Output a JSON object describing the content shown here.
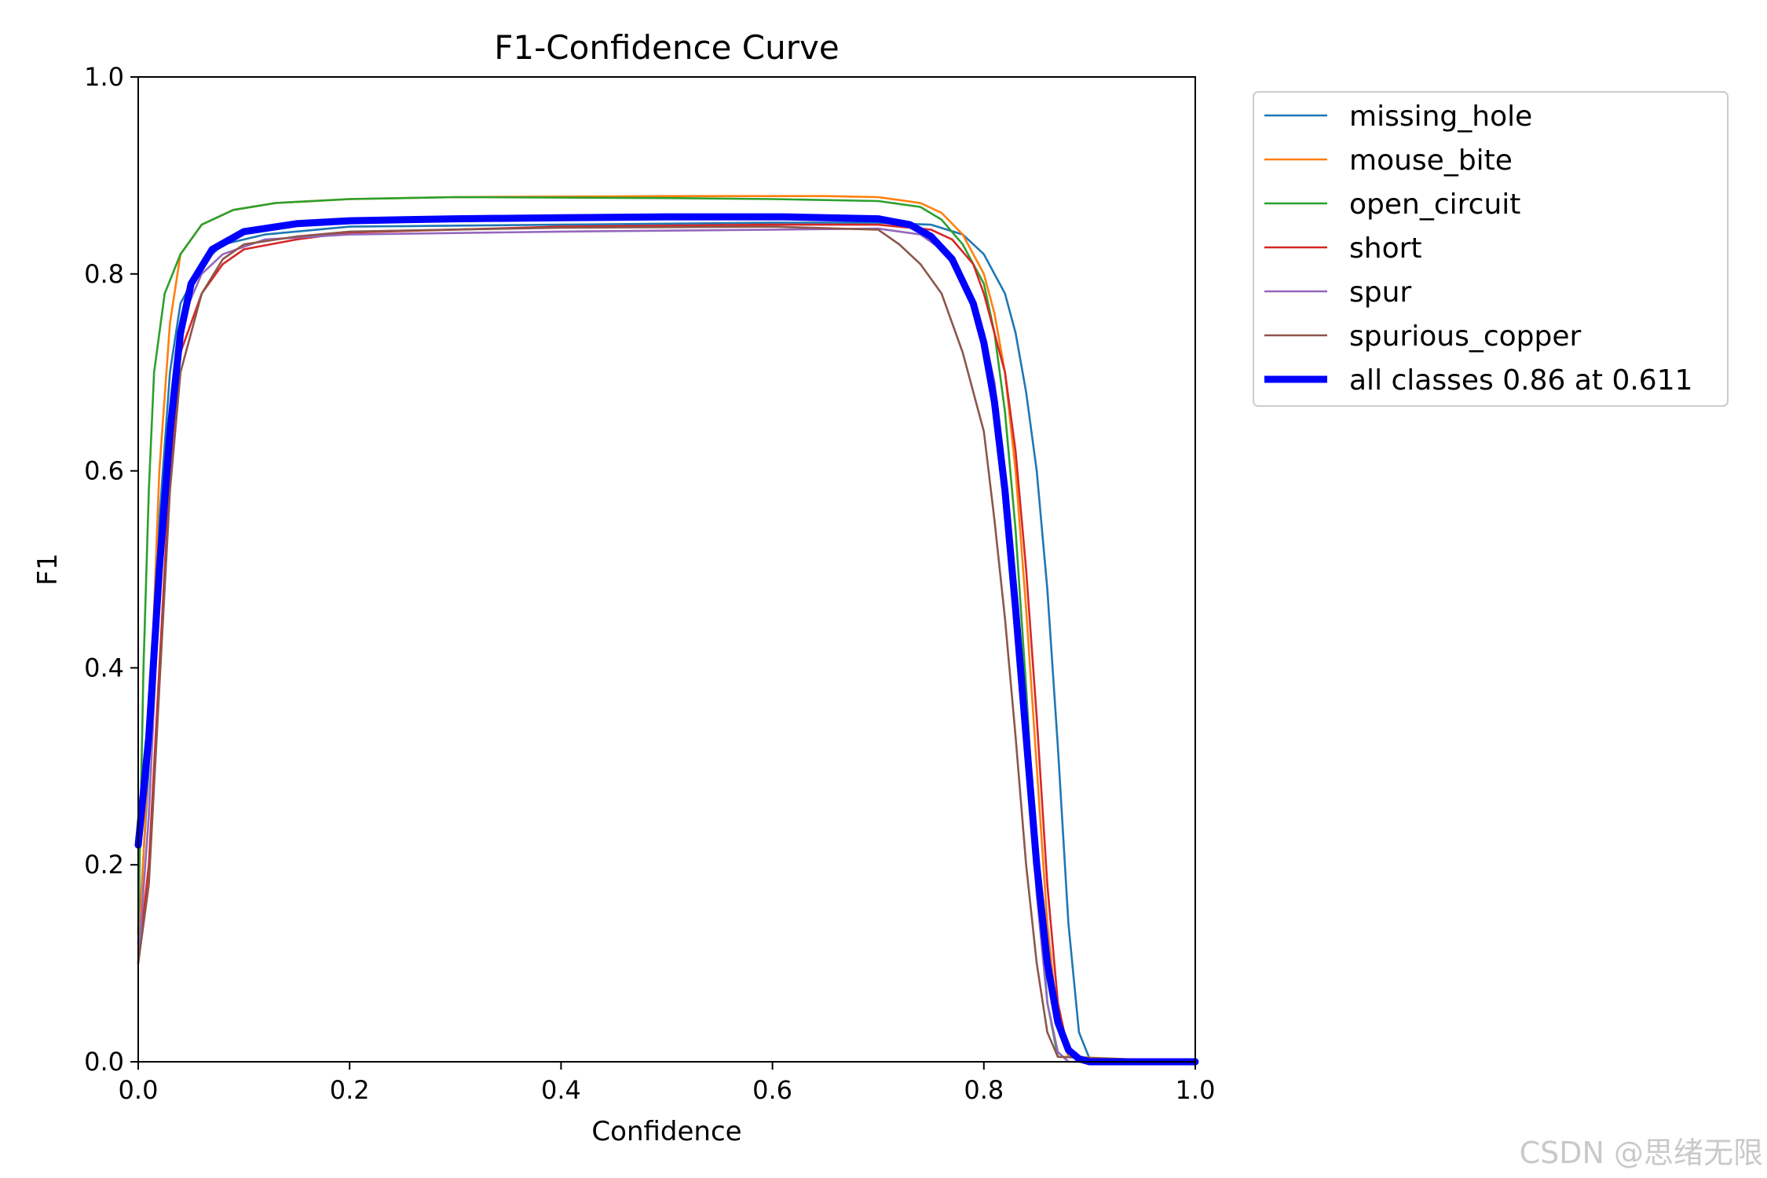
{
  "chart_data": {
    "type": "line",
    "title": "F1-Confidence Curve",
    "xlabel": "Confidence",
    "ylabel": "F1",
    "xlim": [
      0.0,
      1.0
    ],
    "ylim": [
      0.0,
      1.0
    ],
    "xticks": [
      "0.0",
      "0.2",
      "0.4",
      "0.6",
      "0.8",
      "1.0"
    ],
    "yticks": [
      "0.0",
      "0.2",
      "0.4",
      "0.6",
      "0.8",
      "1.0"
    ],
    "grid": false,
    "legend_position": "outside-right-top",
    "series": [
      {
        "name": "missing_hole",
        "color": "#1f77b4",
        "width": "thin",
        "points": [
          [
            0.0,
            0.12
          ],
          [
            0.01,
            0.3
          ],
          [
            0.02,
            0.55
          ],
          [
            0.03,
            0.7
          ],
          [
            0.04,
            0.77
          ],
          [
            0.06,
            0.81
          ],
          [
            0.08,
            0.83
          ],
          [
            0.12,
            0.84
          ],
          [
            0.2,
            0.848
          ],
          [
            0.4,
            0.85
          ],
          [
            0.6,
            0.852
          ],
          [
            0.7,
            0.852
          ],
          [
            0.75,
            0.85
          ],
          [
            0.78,
            0.84
          ],
          [
            0.8,
            0.82
          ],
          [
            0.82,
            0.78
          ],
          [
            0.83,
            0.74
          ],
          [
            0.84,
            0.68
          ],
          [
            0.85,
            0.6
          ],
          [
            0.86,
            0.48
          ],
          [
            0.87,
            0.32
          ],
          [
            0.88,
            0.14
          ],
          [
            0.89,
            0.03
          ],
          [
            0.9,
            0.003
          ],
          [
            1.0,
            0.0
          ]
        ]
      },
      {
        "name": "mouse_bite",
        "color": "#ff7f0e",
        "width": "thin",
        "points": [
          [
            0.0,
            0.1
          ],
          [
            0.01,
            0.32
          ],
          [
            0.02,
            0.6
          ],
          [
            0.03,
            0.75
          ],
          [
            0.04,
            0.82
          ],
          [
            0.06,
            0.85
          ],
          [
            0.09,
            0.865
          ],
          [
            0.13,
            0.872
          ],
          [
            0.2,
            0.876
          ],
          [
            0.3,
            0.878
          ],
          [
            0.5,
            0.879
          ],
          [
            0.65,
            0.879
          ],
          [
            0.7,
            0.878
          ],
          [
            0.74,
            0.872
          ],
          [
            0.76,
            0.862
          ],
          [
            0.78,
            0.84
          ],
          [
            0.8,
            0.8
          ],
          [
            0.81,
            0.76
          ],
          [
            0.82,
            0.7
          ],
          [
            0.83,
            0.6
          ],
          [
            0.84,
            0.46
          ],
          [
            0.85,
            0.3
          ],
          [
            0.86,
            0.14
          ],
          [
            0.87,
            0.04
          ],
          [
            0.88,
            0.005
          ],
          [
            1.0,
            0.0
          ]
        ]
      },
      {
        "name": "open_circuit",
        "color": "#2ca02c",
        "width": "thin",
        "points": [
          [
            0.0,
            0.13
          ],
          [
            0.005,
            0.4
          ],
          [
            0.01,
            0.58
          ],
          [
            0.015,
            0.7
          ],
          [
            0.025,
            0.78
          ],
          [
            0.04,
            0.82
          ],
          [
            0.06,
            0.85
          ],
          [
            0.09,
            0.865
          ],
          [
            0.13,
            0.872
          ],
          [
            0.2,
            0.876
          ],
          [
            0.3,
            0.878
          ],
          [
            0.5,
            0.877
          ],
          [
            0.6,
            0.876
          ],
          [
            0.7,
            0.874
          ],
          [
            0.74,
            0.868
          ],
          [
            0.76,
            0.855
          ],
          [
            0.78,
            0.83
          ],
          [
            0.8,
            0.79
          ],
          [
            0.81,
            0.74
          ],
          [
            0.82,
            0.66
          ],
          [
            0.83,
            0.54
          ],
          [
            0.84,
            0.38
          ],
          [
            0.85,
            0.2
          ],
          [
            0.86,
            0.06
          ],
          [
            0.87,
            0.005
          ],
          [
            1.0,
            0.0
          ]
        ]
      },
      {
        "name": "short",
        "color": "#d62728",
        "width": "thin",
        "points": [
          [
            0.0,
            0.1
          ],
          [
            0.01,
            0.2
          ],
          [
            0.02,
            0.4
          ],
          [
            0.03,
            0.6
          ],
          [
            0.04,
            0.72
          ],
          [
            0.06,
            0.78
          ],
          [
            0.08,
            0.81
          ],
          [
            0.1,
            0.825
          ],
          [
            0.15,
            0.835
          ],
          [
            0.2,
            0.842
          ],
          [
            0.4,
            0.848
          ],
          [
            0.6,
            0.85
          ],
          [
            0.7,
            0.85
          ],
          [
            0.75,
            0.845
          ],
          [
            0.77,
            0.835
          ],
          [
            0.79,
            0.81
          ],
          [
            0.8,
            0.78
          ],
          [
            0.82,
            0.7
          ],
          [
            0.83,
            0.62
          ],
          [
            0.84,
            0.5
          ],
          [
            0.85,
            0.35
          ],
          [
            0.86,
            0.18
          ],
          [
            0.87,
            0.06
          ],
          [
            0.88,
            0.01
          ],
          [
            0.89,
            0.0
          ],
          [
            1.0,
            0.0
          ]
        ]
      },
      {
        "name": "spur",
        "color": "#9467bd",
        "width": "thin",
        "points": [
          [
            0.0,
            0.1
          ],
          [
            0.01,
            0.25
          ],
          [
            0.02,
            0.48
          ],
          [
            0.03,
            0.65
          ],
          [
            0.04,
            0.75
          ],
          [
            0.06,
            0.8
          ],
          [
            0.08,
            0.82
          ],
          [
            0.12,
            0.835
          ],
          [
            0.2,
            0.84
          ],
          [
            0.4,
            0.843
          ],
          [
            0.6,
            0.845
          ],
          [
            0.7,
            0.846
          ],
          [
            0.74,
            0.84
          ],
          [
            0.76,
            0.825
          ],
          [
            0.78,
            0.795
          ],
          [
            0.8,
            0.74
          ],
          [
            0.81,
            0.69
          ],
          [
            0.82,
            0.6
          ],
          [
            0.83,
            0.48
          ],
          [
            0.84,
            0.33
          ],
          [
            0.85,
            0.17
          ],
          [
            0.86,
            0.06
          ],
          [
            0.87,
            0.01
          ],
          [
            0.88,
            0.0
          ],
          [
            1.0,
            0.0
          ]
        ]
      },
      {
        "name": "spurious_copper",
        "color": "#8c564b",
        "width": "thin",
        "points": [
          [
            0.0,
            0.1
          ],
          [
            0.01,
            0.18
          ],
          [
            0.02,
            0.38
          ],
          [
            0.03,
            0.58
          ],
          [
            0.04,
            0.7
          ],
          [
            0.06,
            0.78
          ],
          [
            0.08,
            0.815
          ],
          [
            0.1,
            0.83
          ],
          [
            0.15,
            0.838
          ],
          [
            0.2,
            0.843
          ],
          [
            0.4,
            0.847
          ],
          [
            0.6,
            0.848
          ],
          [
            0.7,
            0.845
          ],
          [
            0.72,
            0.83
          ],
          [
            0.74,
            0.81
          ],
          [
            0.76,
            0.78
          ],
          [
            0.78,
            0.72
          ],
          [
            0.8,
            0.64
          ],
          [
            0.81,
            0.55
          ],
          [
            0.82,
            0.45
          ],
          [
            0.83,
            0.33
          ],
          [
            0.84,
            0.2
          ],
          [
            0.85,
            0.1
          ],
          [
            0.86,
            0.03
          ],
          [
            0.87,
            0.005
          ],
          [
            1.0,
            0.0
          ]
        ]
      },
      {
        "name": "all classes 0.86 at 0.611",
        "color": "#0000ff",
        "width": "thick",
        "points": [
          [
            0.0,
            0.22
          ],
          [
            0.01,
            0.33
          ],
          [
            0.02,
            0.5
          ],
          [
            0.03,
            0.64
          ],
          [
            0.04,
            0.74
          ],
          [
            0.05,
            0.79
          ],
          [
            0.07,
            0.825
          ],
          [
            0.1,
            0.843
          ],
          [
            0.15,
            0.851
          ],
          [
            0.2,
            0.854
          ],
          [
            0.3,
            0.856
          ],
          [
            0.4,
            0.857
          ],
          [
            0.5,
            0.858
          ],
          [
            0.611,
            0.858
          ],
          [
            0.7,
            0.856
          ],
          [
            0.73,
            0.85
          ],
          [
            0.75,
            0.838
          ],
          [
            0.77,
            0.815
          ],
          [
            0.79,
            0.77
          ],
          [
            0.8,
            0.73
          ],
          [
            0.81,
            0.67
          ],
          [
            0.82,
            0.58
          ],
          [
            0.83,
            0.46
          ],
          [
            0.84,
            0.33
          ],
          [
            0.85,
            0.2
          ],
          [
            0.86,
            0.1
          ],
          [
            0.87,
            0.04
          ],
          [
            0.88,
            0.012
          ],
          [
            0.89,
            0.003
          ],
          [
            0.9,
            0.0
          ],
          [
            1.0,
            0.0
          ]
        ]
      }
    ]
  },
  "watermark": "CSDN @思绪无限"
}
